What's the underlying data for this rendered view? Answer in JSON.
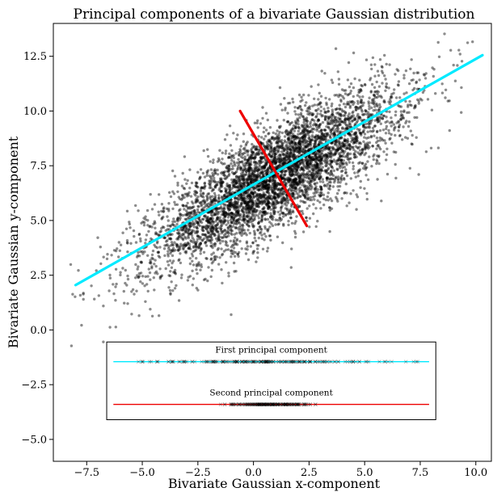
{
  "chart_data": {
    "type": "scatter",
    "title": "Principal components of a bivariate Gaussian distribution",
    "xlabel": "Bivariate Gaussian x-component",
    "ylabel": "Bivariate Gaussian y-component",
    "xlim": [
      -9.0,
      10.7
    ],
    "ylim": [
      -6.0,
      14.0
    ],
    "xticks": [
      -7.5,
      -5.0,
      -2.5,
      0.0,
      2.5,
      5.0,
      7.5,
      10.0
    ],
    "yticks": [
      -5.0,
      -2.5,
      0.0,
      2.5,
      5.0,
      7.5,
      10.0,
      12.5
    ],
    "xtick_labels": [
      "−7.5",
      "−5.0",
      "−2.5",
      "0.0",
      "2.5",
      "5.0",
      "7.5",
      "10.0"
    ],
    "ytick_labels": [
      "−5.0",
      "−2.5",
      "0.0",
      "2.5",
      "5.0",
      "7.5",
      "10.0",
      "12.5"
    ],
    "grid": false,
    "scatter": {
      "color": "#000000",
      "opacity": 0.45,
      "approx_count": 5000,
      "mean": [
        1.0,
        7.0
      ],
      "std_major": 3.3,
      "std_minor": 1.0,
      "angle_deg": 33
    },
    "lines": [
      {
        "name": "First principal component",
        "color": "#00eaff",
        "x": [
          -8.0,
          10.3
        ],
        "y": [
          2.05,
          12.55
        ]
      },
      {
        "name": "Second principal component",
        "color": "#ee0000",
        "x": [
          -0.6,
          2.4
        ],
        "y": [
          10.0,
          4.75
        ]
      }
    ],
    "legend_box": {
      "x": [
        -6.6,
        8.2
      ],
      "y": [
        -4.1,
        -0.55
      ]
    },
    "inset_axes": [
      {
        "label": "First principal component",
        "color": "#00eaff",
        "x": [
          -6.3,
          7.9
        ],
        "y": -1.45,
        "marker_range": [
          -6.3,
          7.6
        ],
        "std": 3.3
      },
      {
        "label": "Second principal component",
        "color": "#ee0000",
        "x": [
          -6.3,
          7.9
        ],
        "y": -3.4,
        "marker_range": [
          -1.5,
          2.9
        ],
        "std": 1.0
      }
    ]
  }
}
